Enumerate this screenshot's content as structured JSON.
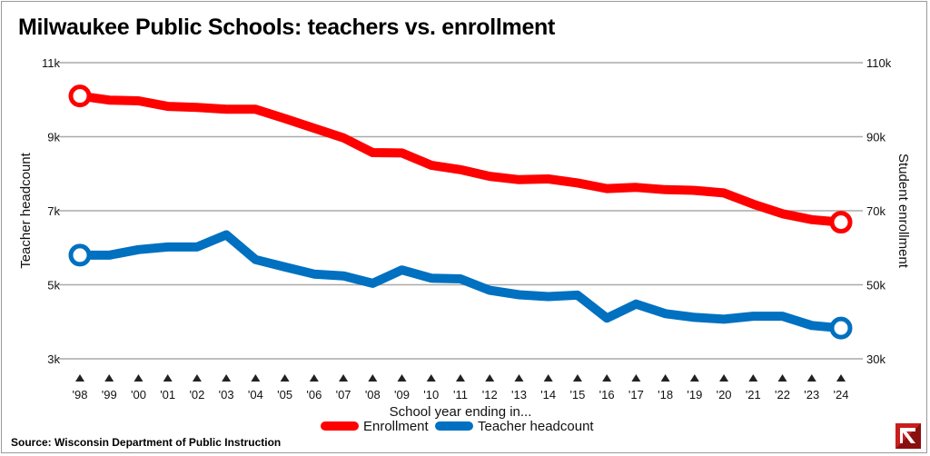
{
  "title": "Milwaukee Public Schools: teachers vs. enrollment",
  "source": "Source: Wisconsin Department of Public Instruction",
  "logo": "logo-icon",
  "colors": {
    "enrollment": "#ff0000",
    "teachers": "#0070c0",
    "grid": "#aaaaaa",
    "marker": "#222222"
  },
  "chart_data": {
    "type": "line",
    "title": "Milwaukee Public Schools: teachers vs. enrollment",
    "xlabel": "School year ending in...",
    "ylabel_left": "Teacher headcount",
    "ylabel_right": "Student enrollment",
    "x": [
      "'98",
      "'99",
      "'00",
      "'01",
      "'02",
      "'03",
      "'04",
      "'05",
      "'06",
      "'07",
      "'08",
      "'09",
      "'10",
      "'11",
      "'12",
      "'13",
      "'14",
      "'15",
      "'16",
      "'17",
      "'18",
      "'19",
      "'20",
      "'21",
      "'22",
      "'23",
      "'24"
    ],
    "y_left": {
      "min": 3000,
      "max": 11000,
      "ticks": [
        3000,
        5000,
        7000,
        9000,
        11000
      ],
      "tick_labels": [
        "3k",
        "5k",
        "7k",
        "9k",
        "11k"
      ]
    },
    "y_right": {
      "min": 30000,
      "max": 110000,
      "ticks": [
        30000,
        50000,
        70000,
        90000,
        110000
      ],
      "tick_labels": [
        "30k",
        "50k",
        "70k",
        "90k",
        "110k"
      ]
    },
    "series": [
      {
        "name": "Enrollment",
        "axis": "right",
        "color": "#ff0000",
        "values": [
          101000,
          99900,
          99700,
          98200,
          97900,
          97400,
          97400,
          94900,
          92300,
          89700,
          85700,
          85600,
          82300,
          81100,
          79300,
          78400,
          78600,
          77500,
          76000,
          76300,
          75700,
          75500,
          74800,
          71800,
          69200,
          67600,
          66900
        ]
      },
      {
        "name": "Teacher headcount",
        "axis": "left",
        "color": "#0070c0",
        "values": [
          5800,
          5800,
          5950,
          6020,
          6020,
          6350,
          5680,
          5480,
          5290,
          5240,
          5040,
          5400,
          5180,
          5160,
          4850,
          4730,
          4680,
          4720,
          4100,
          4480,
          4220,
          4120,
          4070,
          4150,
          4150,
          3900,
          3830
        ]
      }
    ],
    "legend": [
      "Enrollment",
      "Teacher headcount"
    ],
    "legend_position": "bottom-center",
    "grid": true
  }
}
